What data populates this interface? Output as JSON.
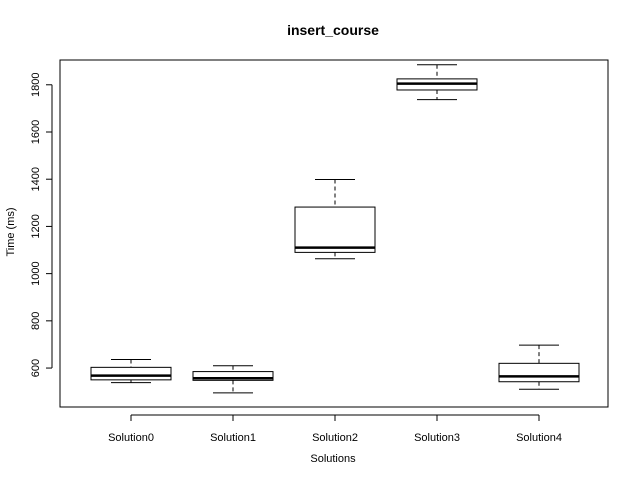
{
  "chart_data": {
    "type": "boxplot",
    "title": "insert_course",
    "xlabel": "Solutions",
    "ylabel": "Time (ms)",
    "ylim": [
      435,
      1905
    ],
    "yticks": [
      600,
      800,
      1000,
      1200,
      1400,
      1600,
      1800
    ],
    "ytick_labels": [
      "600",
      "800",
      "1000",
      "1200",
      "1400",
      "1600",
      "1800"
    ],
    "grid": false,
    "categories": [
      "Solution0",
      "Solution1",
      "Solution2",
      "Solution3",
      "Solution4"
    ],
    "boxes": [
      {
        "category": "Solution0",
        "min": 538,
        "q1": 550,
        "median": 568,
        "q3": 603,
        "max": 636
      },
      {
        "category": "Solution1",
        "min": 495,
        "q1": 548,
        "median": 557,
        "q3": 585,
        "max": 610
      },
      {
        "category": "Solution2",
        "min": 1063,
        "q1": 1090,
        "median": 1110,
        "q3": 1282,
        "max": 1399
      },
      {
        "category": "Solution3",
        "min": 1737,
        "q1": 1778,
        "median": 1805,
        "q3": 1825,
        "max": 1885
      },
      {
        "category": "Solution4",
        "min": 510,
        "q1": 542,
        "median": 565,
        "q3": 620,
        "max": 697
      }
    ]
  }
}
